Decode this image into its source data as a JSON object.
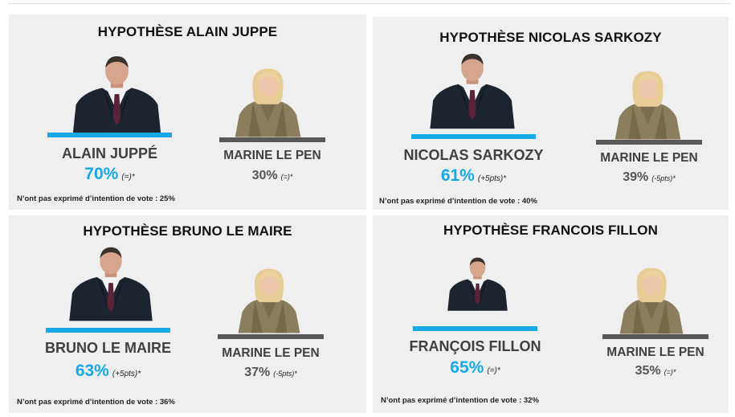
{
  "chart_data": [
    {
      "type": "table",
      "title": "HYPOTHÈSE ALAIN JUPPE",
      "candidates": [
        {
          "name": "ALAIN JUPPÉ",
          "value": 70,
          "percent_label": "70%",
          "change_label": "(=)*",
          "color": "#16a9e6"
        },
        {
          "name": "MARINE LE PEN",
          "value": 30,
          "percent_label": "30%",
          "change_label": "(=)*",
          "color": "#595959"
        }
      ],
      "note": "N’ont pas exprimé d’intention de vote : 25%"
    },
    {
      "type": "table",
      "title": "HYPOTHÈSE NICOLAS SARKOZY",
      "candidates": [
        {
          "name": "NICOLAS SARKOZY",
          "value": 61,
          "percent_label": "61%",
          "change_label": "(+5pts)*",
          "color": "#16a9e6"
        },
        {
          "name": "MARINE LE PEN",
          "value": 39,
          "percent_label": "39%",
          "change_label": "(-5pts)*",
          "color": "#595959"
        }
      ],
      "note": "N’ont pas exprimé d’intention de vote : 40%"
    },
    {
      "type": "table",
      "title": "HYPOTHÈSE BRUNO LE MAIRE",
      "candidates": [
        {
          "name": "BRUNO LE MAIRE",
          "value": 63,
          "percent_label": "63%",
          "change_label": "(+5pts)*",
          "color": "#16a9e6"
        },
        {
          "name": "MARINE LE PEN",
          "value": 37,
          "percent_label": "37%",
          "change_label": "(-5pts)*",
          "color": "#595959"
        }
      ],
      "note": "N’ont pas exprimé d’intention de vote : 36%"
    },
    {
      "type": "table",
      "title": "HYPOTHÈSE FRANCOIS FILLON",
      "candidates": [
        {
          "name": "FRANÇOIS FILLON",
          "value": 65,
          "percent_label": "65%",
          "change_label": "(=)*",
          "color": "#16a9e6"
        },
        {
          "name": "MARINE LE PEN",
          "value": 35,
          "percent_label": "35%",
          "change_label": "(=)*",
          "color": "#595959"
        }
      ],
      "note": "N’ont pas exprimé d’intention de vote : 32%"
    }
  ],
  "photos": {
    "man_1": "man-portrait-icon",
    "man_2": "man-portrait-icon",
    "man_3": "man-portrait-icon",
    "man_4": "man-portrait-icon",
    "woman": "woman-portrait-icon"
  }
}
